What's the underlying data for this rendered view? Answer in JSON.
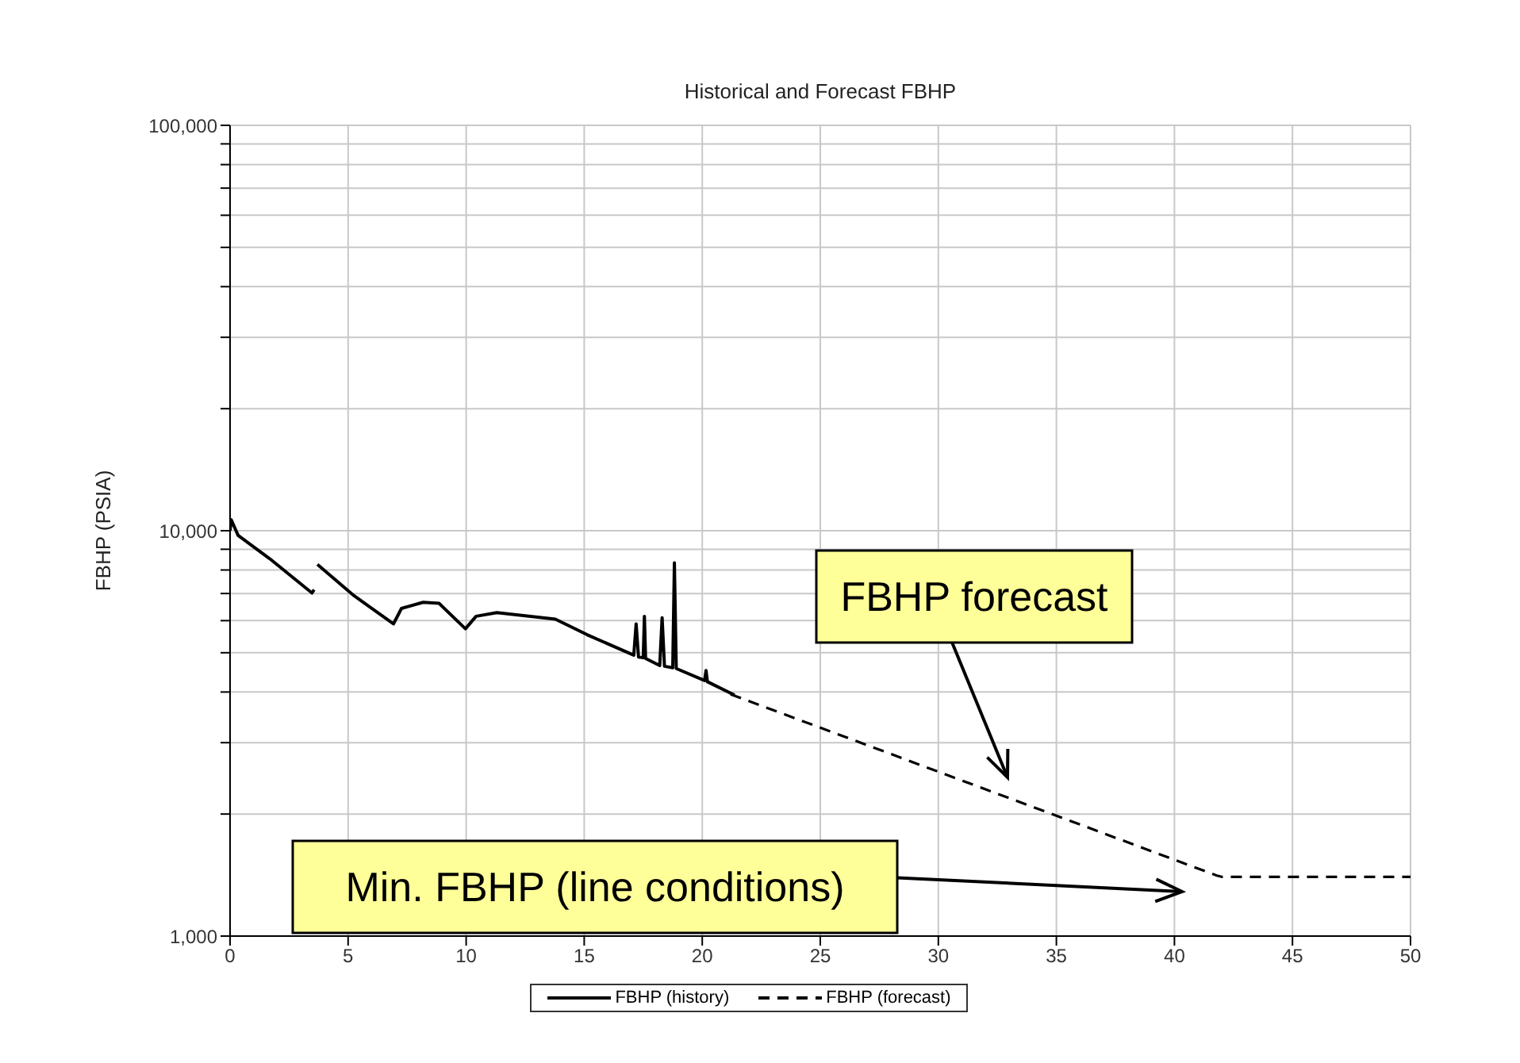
{
  "chart_data": {
    "type": "line",
    "title": "Historical and Forecast FBHP",
    "ylabel": "FBHP (PSIA)",
    "log": "y",
    "grid": true,
    "legend": "bottom",
    "marker": "none",
    "xlim": [
      0,
      50
    ],
    "xticks": [
      0,
      5,
      10,
      15,
      20,
      25,
      30,
      35,
      40,
      45,
      50
    ],
    "ylim": [
      1000,
      100000
    ],
    "yticks": [
      {
        "value": 1000,
        "label": "1,000"
      },
      {
        "value": 2000,
        "label": null
      },
      {
        "value": 3000,
        "label": null
      },
      {
        "value": 4000,
        "label": null
      },
      {
        "value": 5000,
        "label": null
      },
      {
        "value": 6000,
        "label": null
      },
      {
        "value": 7000,
        "label": null
      },
      {
        "value": 8000,
        "label": null
      },
      {
        "value": 9000,
        "label": null
      },
      {
        "value": 10000,
        "label": "10,000"
      },
      {
        "value": 20000,
        "label": null
      },
      {
        "value": 30000,
        "label": null
      },
      {
        "value": 40000,
        "label": null
      },
      {
        "value": 50000,
        "label": null
      },
      {
        "value": 60000,
        "label": null
      },
      {
        "value": 70000,
        "label": null
      },
      {
        "value": 80000,
        "label": null
      },
      {
        "value": 90000,
        "label": null
      },
      {
        "value": 100000,
        "label": "100,000"
      }
    ],
    "series": [
      {
        "name": "FBHP (history)",
        "line_style": "solid",
        "color": "#000000",
        "x": [
          0,
          0.05,
          0.34,
          1.68,
          3.47,
          3.56,
          3.62,
          3.7,
          5.24,
          6.92,
          7.26,
          8.18,
          8.85,
          9.97,
          10.42,
          11.3,
          13.78,
          15.12,
          17.1,
          17.2,
          17.3,
          17.5,
          17.55,
          17.6,
          18.2,
          18.3,
          18.4,
          18.75,
          18.82,
          18.9,
          20.1,
          20.16,
          20.22,
          21.37
        ],
        "values": [
          10000,
          10640,
          9740,
          8530,
          7020,
          7150,
          null,
          8260,
          6920,
          5890,
          6430,
          6660,
          6620,
          5730,
          6150,
          6280,
          6050,
          5540,
          4930,
          5890,
          4880,
          4860,
          6150,
          4840,
          4650,
          6100,
          4630,
          4590,
          8330,
          4570,
          4270,
          4520,
          4240,
          3930
        ]
      },
      {
        "name": "FBHP (forecast)",
        "line_style": "dashed",
        "color": "#000000",
        "x": [
          21.2,
          41.8,
          42,
          50
        ],
        "values": [
          3950,
          1410,
          1400,
          1400
        ]
      }
    ],
    "annotations": [
      "FBHP forecast",
      "Min. FBHP (line conditions)"
    ]
  }
}
